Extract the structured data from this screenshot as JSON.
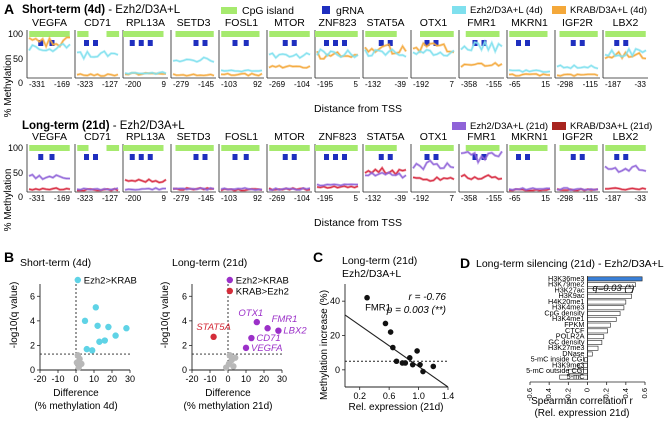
{
  "panel_labels": {
    "a": "A",
    "b": "B",
    "c": "C",
    "d": "D"
  },
  "colors": {
    "cpg": "#a6ea6e",
    "grna": "#1f2fbf",
    "ezh2_short": "#7fe0ee",
    "krab_short": "#f4a83a",
    "ezh2_long": "#8f63d8",
    "krab_long": "#d7263d",
    "cyan": "#5fd3e6",
    "grey": "#b8b8b8",
    "purple": "#9b30c8",
    "red": "#d42d3a",
    "blue_bar": "#3a80d8"
  },
  "panel_a": {
    "short": {
      "title_bold": "Short-term (4d)",
      "title_rest": " - Ezh2/D3A+L",
      "legend_cpg": "CpG island",
      "legend_grna": "gRNA",
      "legend_ezh2": "Ezh2/D3A+L (4d)",
      "legend_krab": "KRAB/D3A+L (4d)",
      "ylabel": "% Methylation",
      "xlabel": "Distance from TSS",
      "yticks": [
        "100",
        "50",
        "0"
      ]
    },
    "long": {
      "title_bold": "Long-term (21d)",
      "title_rest": " - Ezh2/D3A+L",
      "legend_ezh2": "Ezh2/D3A+L (21d)",
      "legend_krab": "KRAB/D3A+L (21d)",
      "ylabel": "% Methylation",
      "xlabel": "Distance from TSS",
      "yticks": [
        "100",
        "50",
        "0"
      ]
    },
    "genes": [
      {
        "name": "VEGFA",
        "x_start": "-331",
        "x_end": "-169"
      },
      {
        "name": "CD71",
        "x_start": "-323",
        "x_end": "-127"
      },
      {
        "name": "RPL13A",
        "x_start": "-200",
        "x_end": "9"
      },
      {
        "name": "SETD3",
        "x_start": "-279",
        "x_end": "-145"
      },
      {
        "name": "FOSL1",
        "x_start": "-103",
        "x_end": "92"
      },
      {
        "name": "MTOR",
        "x_start": "-269",
        "x_end": "-104"
      },
      {
        "name": "ZNF823",
        "x_start": "-195",
        "x_end": "5"
      },
      {
        "name": "STAT5A",
        "x_start": "-132",
        "x_end": "-39"
      },
      {
        "name": "OTX1",
        "x_start": "-192",
        "x_end": "7"
      },
      {
        "name": "FMR1",
        "x_start": "-358",
        "x_end": "-155"
      },
      {
        "name": "MKRN1",
        "x_start": "-65",
        "x_end": "15"
      },
      {
        "name": "IGF2R",
        "x_start": "-298",
        "x_end": "-115"
      },
      {
        "name": "LBX2",
        "x_start": "-187",
        "x_end": "-33"
      }
    ]
  },
  "chart_data": [
    {
      "id": "b_short",
      "type": "scatter",
      "title": "Short-term (4d)",
      "xlabel": "Difference",
      "xlabel2": "(% methylation 4d)",
      "ylabel": "-log10(q value)",
      "xlim": [
        -20,
        30
      ],
      "ylim": [
        0,
        7
      ],
      "xticks": [
        "-20",
        "-10",
        "0",
        "10",
        "20",
        "30"
      ],
      "yticks": [
        "0",
        "2",
        "4",
        "6"
      ],
      "threshold_y": 1.3,
      "legend": [
        {
          "name": "Ezh2>KRAB"
        }
      ],
      "series": [
        {
          "name": "Ezh2>KRAB",
          "points": [
            [
              11,
              5.1
            ],
            [
              5,
              4.0
            ],
            [
              12,
              3.6
            ],
            [
              18,
              3.5
            ],
            [
              28,
              3.4
            ],
            [
              22,
              2.8
            ],
            [
              16,
              2.4
            ],
            [
              13,
              2.3
            ],
            [
              9,
              1.6
            ],
            [
              6,
              1.7
            ]
          ]
        },
        {
          "name": "n.s.",
          "points": [
            [
              1,
              1.2
            ],
            [
              2,
              0.9
            ],
            [
              0.5,
              0.6
            ],
            [
              3,
              0.5
            ],
            [
              1.5,
              0.2
            ]
          ]
        }
      ]
    },
    {
      "id": "b_long",
      "type": "scatter",
      "title": "Long-term (21d)",
      "xlabel": "Difference",
      "xlabel2": "(% methylation 21d)",
      "ylabel": "-log10(q value)",
      "xlim": [
        -20,
        30
      ],
      "ylim": [
        0,
        7
      ],
      "xticks": [
        "-20",
        "-10",
        "0",
        "10",
        "20",
        "30"
      ],
      "yticks": [
        "0",
        "2",
        "4",
        "6"
      ],
      "threshold_y": 1.3,
      "legend": [
        {
          "name": "Ezh2>KRAB"
        },
        {
          "name": "KRAB>Ezh2"
        }
      ],
      "series": [
        {
          "name": "Ezh2>KRAB",
          "points": [
            [
              16,
              3.9
            ],
            [
              22,
              3.4
            ],
            [
              28,
              3.2
            ],
            [
              13,
              2.6
            ],
            [
              10,
              1.8
            ]
          ]
        },
        {
          "name": "KRAB>Ezh2",
          "points": [
            [
              -8,
              2.7
            ]
          ]
        },
        {
          "name": "n.s.",
          "points": [
            [
              1,
              1.2
            ],
            [
              2,
              0.8
            ],
            [
              0.5,
              0.5
            ],
            [
              3,
              0.3
            ],
            [
              4,
              1.0
            ],
            [
              -1,
              0.2
            ]
          ]
        }
      ],
      "labels": [
        {
          "text": "OTX1",
          "x": 16,
          "y": 3.9,
          "color": "purple",
          "pos": "above-left"
        },
        {
          "text": "FMR1",
          "x": 22,
          "y": 3.4,
          "color": "purple",
          "pos": "above-right"
        },
        {
          "text": "LBX2",
          "x": 28,
          "y": 3.2,
          "color": "purple",
          "pos": "right-below"
        },
        {
          "text": "STAT5A",
          "x": -8,
          "y": 2.7,
          "color": "red",
          "pos": "above"
        },
        {
          "text": "CD71",
          "x": 13,
          "y": 2.6,
          "color": "purple",
          "pos": "right"
        },
        {
          "text": "VEGFA",
          "x": 10,
          "y": 1.8,
          "color": "purple",
          "pos": "right"
        }
      ]
    },
    {
      "id": "c",
      "type": "scatter",
      "title": "Long-term (21d)",
      "subtitle": "Ezh2/D3A+L",
      "xlabel": "Rel. expression (21d)",
      "ylabel": "Methylation increase (%)",
      "xlim": [
        0,
        1.4
      ],
      "ylim": [
        -10,
        50
      ],
      "xticks": [
        "0.2",
        "0.6",
        "1.0",
        "1.4"
      ],
      "yticks": [
        "0",
        "20",
        "40"
      ],
      "stat_r": "r = -0.76",
      "stat_p": "p = 0.003 (**)",
      "threshold_y": 5,
      "fit_line": [
        [
          0,
          32
        ],
        [
          1.4,
          -10
        ]
      ],
      "points": [
        [
          0.3,
          42
        ],
        [
          0.55,
          27
        ],
        [
          0.62,
          22
        ],
        [
          0.65,
          13
        ],
        [
          0.7,
          5
        ],
        [
          0.78,
          4
        ],
        [
          0.82,
          4
        ],
        [
          0.88,
          7
        ],
        [
          0.92,
          3
        ],
        [
          0.98,
          11
        ],
        [
          1.02,
          3
        ],
        [
          1.06,
          -1
        ],
        [
          1.2,
          2
        ]
      ],
      "labels": [
        {
          "text": "FMR1",
          "x": 0.3,
          "y": 42
        }
      ]
    },
    {
      "id": "d",
      "type": "bar",
      "orientation": "horizontal",
      "title": "Long-term silencing (21d) - Ezh2/D3A+L",
      "annotation": "q=0.03 (*)",
      "xlabel": "Spearman correlation r",
      "xlabel2": "(Rel. expression 21d)",
      "xlim": [
        -0.6,
        0.6
      ],
      "xticks": [
        "-0.6",
        "-0.4",
        "-0.2",
        "0",
        "0.2",
        "0.4",
        "0.6"
      ],
      "categories": [
        "H3K36me3",
        "H3K79me2",
        "H3K27ac",
        "H3K9ac",
        "H4K20me1",
        "H3K4me3",
        "CpG density",
        "H3K4me1",
        "FPKM",
        "CTCF",
        "POLR2A",
        "GC density",
        "H3K27me3",
        "DNase",
        "5-mC inside CGI",
        "H3K9me3",
        "5-mC outside CGI",
        "5-mC"
      ],
      "values": [
        0.57,
        0.5,
        0.47,
        0.46,
        0.4,
        0.38,
        0.34,
        0.3,
        0.24,
        0.21,
        0.17,
        0.15,
        0.11,
        0.05,
        -0.03,
        -0.1,
        -0.2,
        -0.29
      ],
      "highlight_index": 0
    }
  ]
}
